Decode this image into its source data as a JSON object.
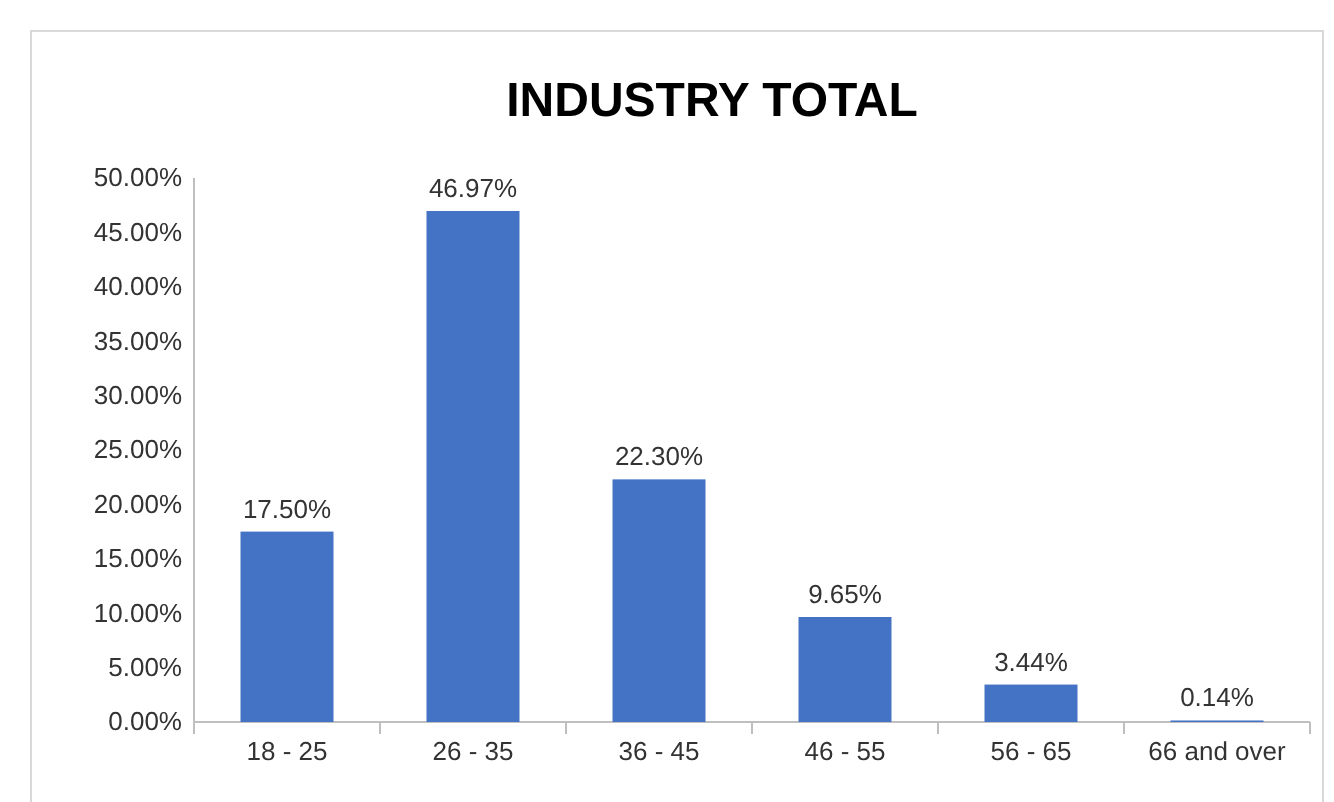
{
  "chart_data": {
    "type": "bar",
    "title": "INDUSTRY TOTAL",
    "categories": [
      "18 - 25",
      "26 - 35",
      "36 - 45",
      "46 - 55",
      "56 - 65",
      "66 and over"
    ],
    "values": [
      17.5,
      46.97,
      22.3,
      9.65,
      3.44,
      0.14
    ],
    "value_labels": [
      "17.50%",
      "46.97%",
      "22.30%",
      "9.65%",
      "3.44%",
      "0.14%"
    ],
    "color": "#4472c4",
    "ylim": [
      0,
      50
    ],
    "yticks": [
      {
        "value": 0,
        "label": "0.00%"
      },
      {
        "value": 5,
        "label": "5.00%"
      },
      {
        "value": 10,
        "label": "10.00%"
      },
      {
        "value": 15,
        "label": "15.00%"
      },
      {
        "value": 20,
        "label": "20.00%"
      },
      {
        "value": 25,
        "label": "25.00%"
      },
      {
        "value": 30,
        "label": "30.00%"
      },
      {
        "value": 35,
        "label": "35.00%"
      },
      {
        "value": 40,
        "label": "40.00%"
      },
      {
        "value": 45,
        "label": "45.00%"
      },
      {
        "value": 50,
        "label": "50.00%"
      }
    ],
    "grid": false
  }
}
